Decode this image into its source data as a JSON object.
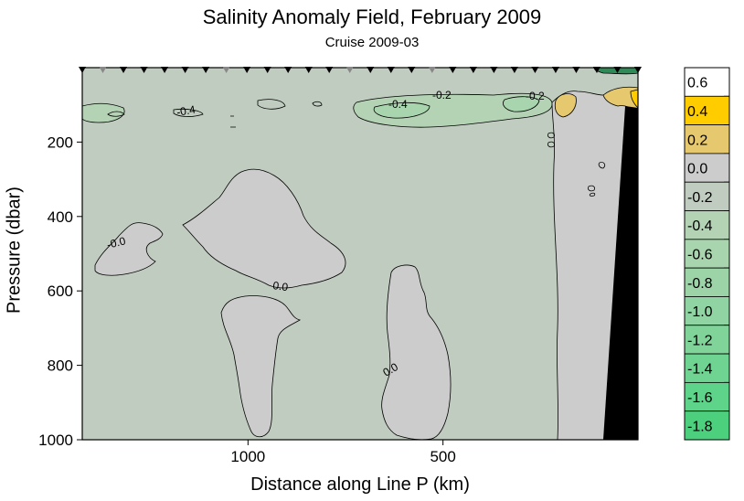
{
  "chart_data": {
    "type": "heatmap",
    "title": "Salinity Anomaly Field,  February 2009",
    "subtitle": "Cruise 2009-03",
    "xlabel": "Distance along Line P  (km)",
    "ylabel": "Pressure  (dbar)",
    "x_ticks": [
      1000,
      500
    ],
    "x_tick_labels": [
      "1000",
      "500"
    ],
    "xlim": [
      1425,
      0
    ],
    "ylim": [
      1000,
      0
    ],
    "y_ticks": [
      200,
      400,
      600,
      800,
      1000
    ],
    "y_tick_labels": [
      "200",
      "400",
      "600",
      "800",
      "1000"
    ],
    "colorbar": {
      "levels": [
        "0.6",
        "0.4",
        "0.2",
        "0.0",
        "-0.2",
        "-0.4",
        "-0.6",
        "-0.8",
        "-1.0",
        "-1.2",
        "-1.4",
        "-1.6",
        "-1.8"
      ],
      "colors": [
        "#ffffff",
        "#ffcc00",
        "#e6c86e",
        "#cccccc",
        "#c0ccc0",
        "#b4d2b4",
        "#a8d4ae",
        "#9cd4a8",
        "#8fd4a2",
        "#80d49a",
        "#6fd492",
        "#5ed48a",
        "#4dd07e"
      ]
    },
    "contour_labels": [
      "-0.2",
      "-0.4",
      "-0.2",
      "-0.4",
      "-0.0",
      "0.0",
      "0.0"
    ],
    "station_markers": 28,
    "bottom_topography_color": "#000000",
    "grid": false,
    "legend": "right"
  }
}
